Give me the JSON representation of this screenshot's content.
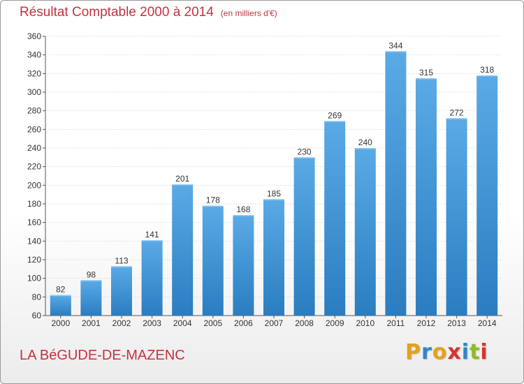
{
  "title": "Résultat Comptable 2000 à 2014",
  "subtitle": "(en milliers d'€)",
  "commune": "LA BéGUDE-DE-MAZENC",
  "brand": {
    "letters": [
      "P",
      "r",
      "o",
      "x",
      "i",
      "t",
      "i"
    ],
    "colors": [
      "#e4a21a",
      "#2f86c8",
      "#e4a21a",
      "#d9332f",
      "#2f86c8",
      "#8dbb2d",
      "#d9332f"
    ]
  },
  "colors": {
    "title": "#c0343f",
    "bar_light": "#5aaae6",
    "bar_dark": "#2a7dc0",
    "grid": "#cfcfcf"
  },
  "chart_data": {
    "type": "bar",
    "title": "Résultat Comptable 2000 à 2014",
    "categories": [
      "2000",
      "2001",
      "2002",
      "2003",
      "2004",
      "2005",
      "2006",
      "2007",
      "2008",
      "2009",
      "2010",
      "2011",
      "2012",
      "2013",
      "2014"
    ],
    "values": [
      82,
      98,
      113,
      141,
      201,
      178,
      168,
      185,
      230,
      269,
      240,
      344,
      315,
      272,
      318
    ],
    "ylim": [
      60,
      360
    ],
    "yticks": [
      60,
      80,
      100,
      120,
      140,
      160,
      180,
      200,
      220,
      240,
      260,
      280,
      300,
      320,
      340,
      360
    ],
    "grid": true,
    "data_labels": true
  }
}
